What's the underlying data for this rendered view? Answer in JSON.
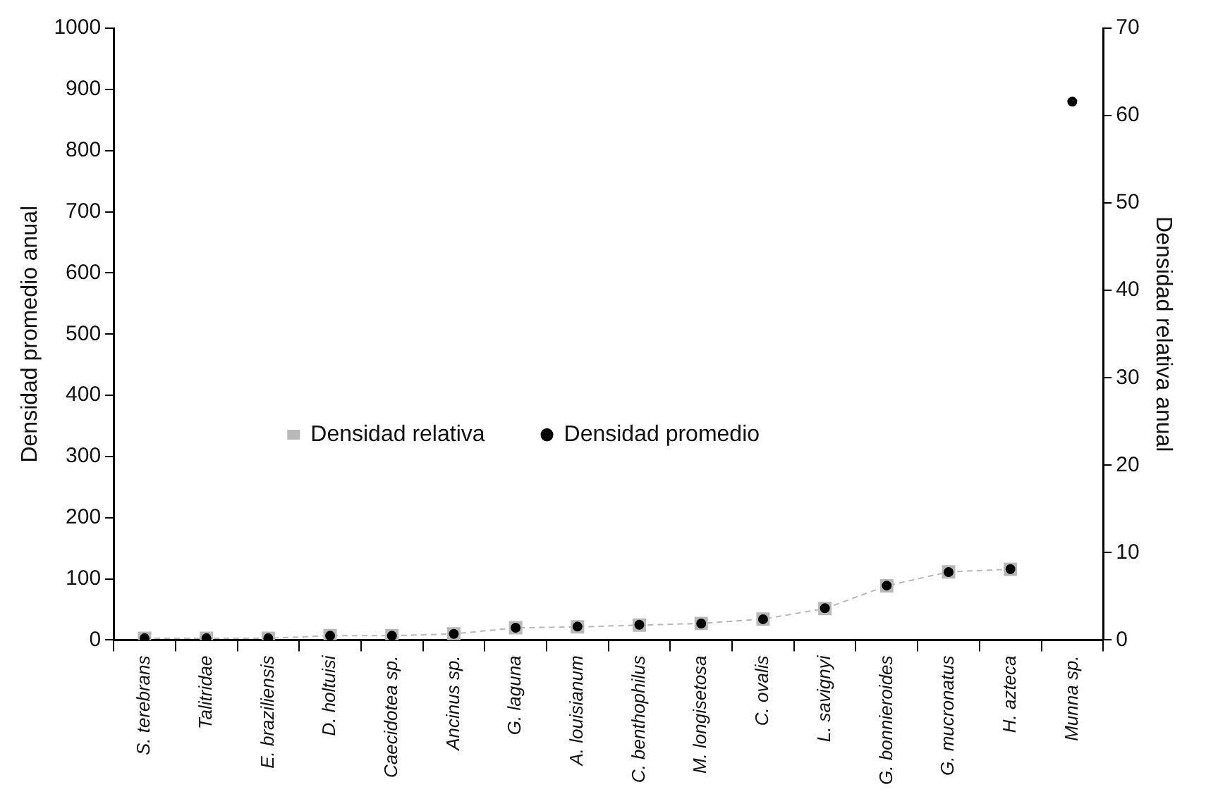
{
  "chart_data": {
    "type": "scatter",
    "ylabel": "Densidad promedio anual",
    "y2label": "Densidad relativa anual",
    "categories": [
      "S. terebrans",
      "Talitridae",
      "E. braziliensis",
      "D. holtuisi",
      "Caecidotea sp.",
      "Ancinus sp.",
      "G. laguna",
      "A. louisianum",
      "C. benthophilus",
      "M. longisetosa",
      "C. ovalis",
      "L. savignyi",
      "G. bonnieroides",
      "G. mucronatus",
      "H. azteca",
      "Munna sp."
    ],
    "series": [
      {
        "name": "Densidad relativa",
        "type": "line",
        "axis": "y2",
        "color": "#b8b8b8",
        "marker": "square",
        "line_style": "dashed",
        "values": [
          0.2,
          0.2,
          0.2,
          0.5,
          0.5,
          0.7,
          1.4,
          1.5,
          1.7,
          1.9,
          2.4,
          3.6,
          6.2,
          7.8,
          8.1,
          null
        ]
      },
      {
        "name": "Densidad promedio",
        "type": "scatter",
        "color": "#000000",
        "marker": "circle",
        "values": [
          3,
          3,
          3,
          7,
          7,
          10,
          20,
          22,
          25,
          27,
          34,
          52,
          89,
          111,
          116,
          880
        ]
      }
    ],
    "ylim": [
      0,
      1000
    ],
    "yticks": [
      0,
      100,
      200,
      300,
      400,
      500,
      600,
      700,
      800,
      900,
      1000
    ],
    "y2lim": [
      0,
      70
    ],
    "y2ticks": [
      0,
      10,
      20,
      30,
      40,
      50,
      60,
      70
    ],
    "grid": false,
    "legend": "center"
  }
}
